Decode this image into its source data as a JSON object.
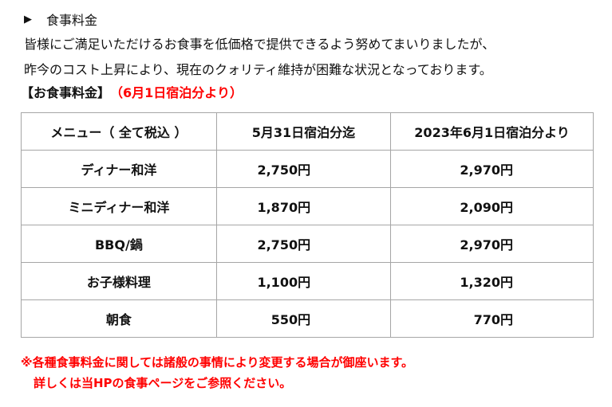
{
  "section": {
    "marker": "▶",
    "title": "食事料金"
  },
  "intro": {
    "line1": "皆様にご満足いただけるお食事を低価格で提供できるよう努めてまいりましたが、",
    "line2": "昨今のコスト上昇により、現在のクォリティ維持が困難な状況となっております。"
  },
  "price_heading": {
    "label": "【お食事料金】",
    "note": "（6月1日宿泊分より）"
  },
  "table": {
    "headers": [
      "メニュー（ 全て税込 ）",
      "5月31日宿泊分迄",
      "2023年6月1日宿泊分より"
    ],
    "rows": [
      {
        "menu": "ディナー和洋",
        "old": "2,750円",
        "new": "2,970円"
      },
      {
        "menu": "ミニディナー和洋",
        "old": "1,870円",
        "new": "2,090円"
      },
      {
        "menu": "BBQ/鍋",
        "old": "2,750円",
        "new": "2,970円"
      },
      {
        "menu": "お子様料理",
        "old": "1,100円",
        "new": "1,320円"
      },
      {
        "menu": "朝食",
        "old": "550円",
        "new": "770円"
      }
    ]
  },
  "notes": {
    "line1": "※各種食事料金に関しては諸般の事情により変更する場合が御座います。",
    "line2": "詳しくは当HPの食事ページをご参照ください。"
  },
  "colors": {
    "accent_red": "#ff0000",
    "border": "#a6a6a6",
    "text": "#111111"
  }
}
